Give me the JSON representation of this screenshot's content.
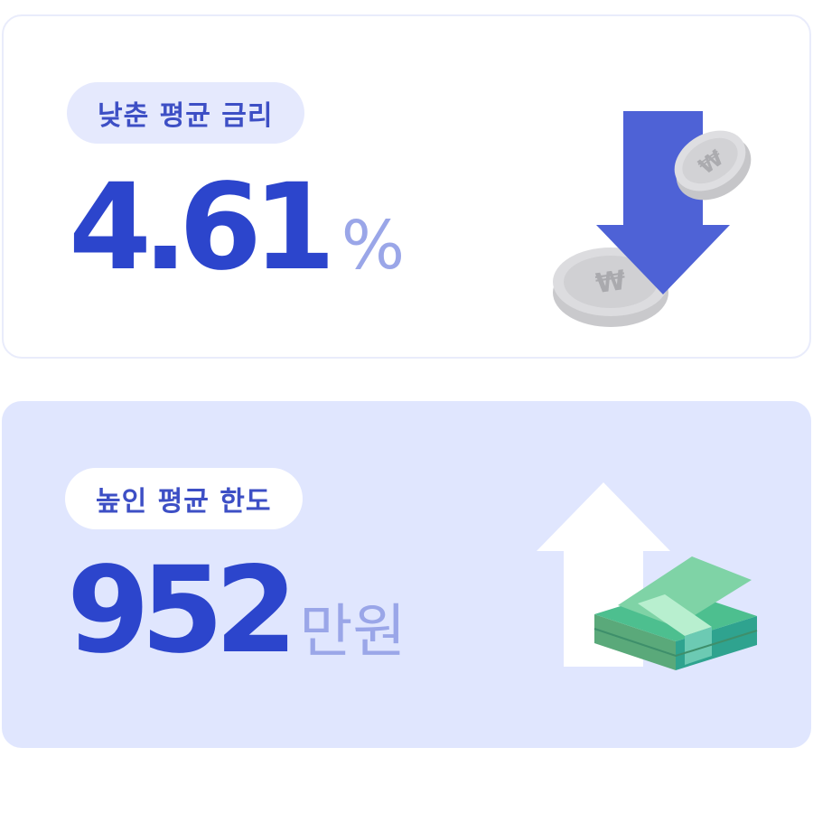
{
  "rate_card": {
    "label": "낮춘 평균 금리",
    "value": "4.61",
    "unit": "%",
    "icon": "arrow-down-coins-icon"
  },
  "limit_card": {
    "label": "높인 평균 한도",
    "value": "952",
    "unit": "만원",
    "icon": "arrow-up-money-icon"
  },
  "colors": {
    "accent": "#2c45cc",
    "unit": "#9aa6e8",
    "pill_text": "#3d4fc5",
    "limit_bg": "#e0e6fe",
    "arrow_blue": "#4e62d6"
  }
}
